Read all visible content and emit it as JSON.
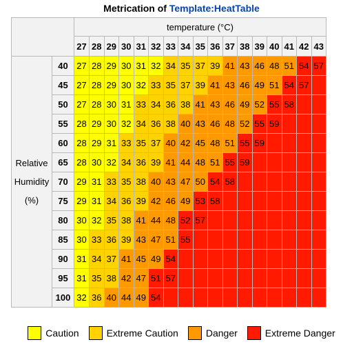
{
  "title": {
    "prefix": "Metrication of ",
    "link": "Template:HeatTable"
  },
  "table": {
    "temperature_label": "temperature (°C)",
    "rh_label_lines": [
      "Relative",
      "Humidity",
      "(%)"
    ],
    "temperatures": [
      "27",
      "28",
      "29",
      "30",
      "31",
      "32",
      "33",
      "34",
      "35",
      "36",
      "37",
      "38",
      "39",
      "40",
      "41",
      "42",
      "43"
    ],
    "humidity": [
      "40",
      "45",
      "50",
      "55",
      "60",
      "65",
      "70",
      "75",
      "80",
      "85",
      "90",
      "95",
      "100"
    ],
    "rows": [
      [
        "27",
        "28",
        "29",
        "30",
        "31",
        "32",
        "34",
        "35",
        "37",
        "39",
        "41",
        "43",
        "46",
        "48",
        "51",
        "54",
        "57"
      ],
      [
        "27",
        "28",
        "29",
        "30",
        "32",
        "33",
        "35",
        "37",
        "39",
        "41",
        "43",
        "46",
        "49",
        "51",
        "54",
        "57",
        ""
      ],
      [
        "27",
        "28",
        "30",
        "31",
        "33",
        "34",
        "36",
        "38",
        "41",
        "43",
        "46",
        "49",
        "52",
        "55",
        "58",
        "",
        ""
      ],
      [
        "28",
        "29",
        "30",
        "32",
        "34",
        "36",
        "38",
        "40",
        "43",
        "46",
        "48",
        "52",
        "55",
        "59",
        "",
        "",
        ""
      ],
      [
        "28",
        "29",
        "31",
        "33",
        "35",
        "37",
        "40",
        "42",
        "45",
        "48",
        "51",
        "55",
        "59",
        "",
        "",
        "",
        ""
      ],
      [
        "28",
        "30",
        "32",
        "34",
        "36",
        "39",
        "41",
        "44",
        "48",
        "51",
        "55",
        "59",
        "",
        "",
        "",
        "",
        ""
      ],
      [
        "29",
        "31",
        "33",
        "35",
        "38",
        "40",
        "43",
        "47",
        "50",
        "54",
        "58",
        "",
        "",
        "",
        "",
        "",
        ""
      ],
      [
        "29",
        "31",
        "34",
        "36",
        "39",
        "42",
        "46",
        "49",
        "53",
        "58",
        "",
        "",
        "",
        "",
        "",
        "",
        ""
      ],
      [
        "30",
        "32",
        "35",
        "38",
        "41",
        "44",
        "48",
        "52",
        "57",
        "",
        "",
        "",
        "",
        "",
        "",
        "",
        ""
      ],
      [
        "30",
        "33",
        "36",
        "39",
        "43",
        "47",
        "51",
        "55",
        "",
        "",
        "",
        "",
        "",
        "",
        "",
        "",
        ""
      ],
      [
        "31",
        "34",
        "37",
        "41",
        "45",
        "49",
        "54",
        "",
        "",
        "",
        "",
        "",
        "",
        "",
        "",
        "",
        ""
      ],
      [
        "31",
        "35",
        "38",
        "42",
        "47",
        "51",
        "57",
        "",
        "",
        "",
        "",
        "",
        "",
        "",
        "",
        "",
        ""
      ],
      [
        "32",
        "36",
        "40",
        "44",
        "49",
        "54",
        "",
        "",
        "",
        "",
        "",
        "",
        "",
        "",
        "",
        "",
        ""
      ]
    ],
    "levels": [
      [
        0,
        0,
        0,
        0,
        0,
        0,
        1,
        1,
        1,
        1,
        2,
        2,
        2,
        2,
        2,
        3,
        3
      ],
      [
        0,
        0,
        0,
        0,
        0,
        1,
        1,
        1,
        1,
        2,
        2,
        2,
        2,
        2,
        3,
        3,
        3
      ],
      [
        0,
        0,
        0,
        0,
        1,
        1,
        1,
        1,
        2,
        2,
        2,
        2,
        2,
        3,
        3,
        3,
        3
      ],
      [
        0,
        0,
        0,
        0,
        1,
        1,
        1,
        2,
        2,
        2,
        2,
        2,
        3,
        3,
        3,
        3,
        3
      ],
      [
        0,
        0,
        0,
        1,
        1,
        1,
        2,
        2,
        2,
        2,
        2,
        3,
        3,
        3,
        3,
        3,
        3
      ],
      [
        0,
        0,
        0,
        1,
        1,
        1,
        2,
        2,
        2,
        2,
        3,
        3,
        3,
        3,
        3,
        3,
        3
      ],
      [
        0,
        0,
        1,
        1,
        1,
        2,
        2,
        2,
        2,
        3,
        3,
        3,
        3,
        3,
        3,
        3,
        3
      ],
      [
        0,
        0,
        1,
        1,
        1,
        2,
        2,
        2,
        3,
        3,
        3,
        3,
        3,
        3,
        3,
        3,
        3
      ],
      [
        0,
        0,
        1,
        1,
        2,
        2,
        2,
        3,
        3,
        3,
        3,
        3,
        3,
        3,
        3,
        3,
        3
      ],
      [
        0,
        1,
        1,
        1,
        2,
        2,
        2,
        3,
        3,
        3,
        3,
        3,
        3,
        3,
        3,
        3,
        3
      ],
      [
        0,
        1,
        1,
        2,
        2,
        2,
        3,
        3,
        3,
        3,
        3,
        3,
        3,
        3,
        3,
        3,
        3
      ],
      [
        0,
        1,
        1,
        2,
        2,
        3,
        3,
        3,
        3,
        3,
        3,
        3,
        3,
        3,
        3,
        3,
        3
      ],
      [
        0,
        1,
        2,
        2,
        2,
        3,
        3,
        3,
        3,
        3,
        3,
        3,
        3,
        3,
        3,
        3,
        3
      ]
    ]
  },
  "legend": [
    {
      "label": "Caution",
      "color": "#ffff00"
    },
    {
      "label": "Extreme Caution",
      "color": "#ffd200"
    },
    {
      "label": "Danger",
      "color": "#ff9900"
    },
    {
      "label": "Extreme Danger",
      "color": "#ff1a00"
    }
  ]
}
